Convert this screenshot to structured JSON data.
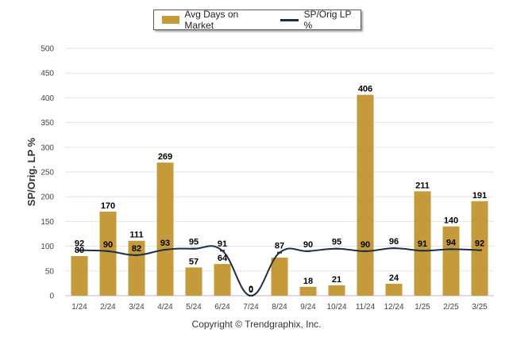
{
  "chart_data": {
    "type": "bar",
    "categories": [
      "1/24",
      "2/24",
      "3/24",
      "4/24",
      "5/24",
      "6/24",
      "7/24",
      "8/24",
      "9/24",
      "10/24",
      "11/24",
      "12/24",
      "1/25",
      "2/25",
      "3/25"
    ],
    "series": [
      {
        "name": "Avg Days on Market",
        "type": "bar",
        "color": "#c49a3a",
        "values": [
          80,
          170,
          111,
          269,
          57,
          64,
          0,
          77,
          18,
          21,
          406,
          24,
          211,
          140,
          191
        ],
        "labels": [
          "80",
          "170",
          "111",
          "269",
          "57",
          "64",
          "0",
          "",
          "18",
          "21",
          "406",
          "24",
          "211",
          "140",
          "191"
        ]
      },
      {
        "name": "SP/Orig LP %",
        "type": "line",
        "color": "#1c2f4a",
        "values": [
          92,
          90,
          82,
          93,
          95,
          91,
          0,
          87,
          90,
          95,
          90,
          96,
          91,
          94,
          92
        ]
      }
    ],
    "ylabel": "SP/Orig. LP %",
    "xlabel": "",
    "ylim": [
      0,
      500
    ],
    "yticks": [
      0,
      50,
      100,
      150,
      200,
      250,
      300,
      350,
      400,
      450,
      500
    ],
    "grid": true,
    "legend_position": "top-center"
  },
  "legend": {
    "bar_label": "Avg Days on Market",
    "line_label": "SP/Orig LP %"
  },
  "footer": {
    "copyright": "Copyright © Trendgraphix, Inc."
  }
}
